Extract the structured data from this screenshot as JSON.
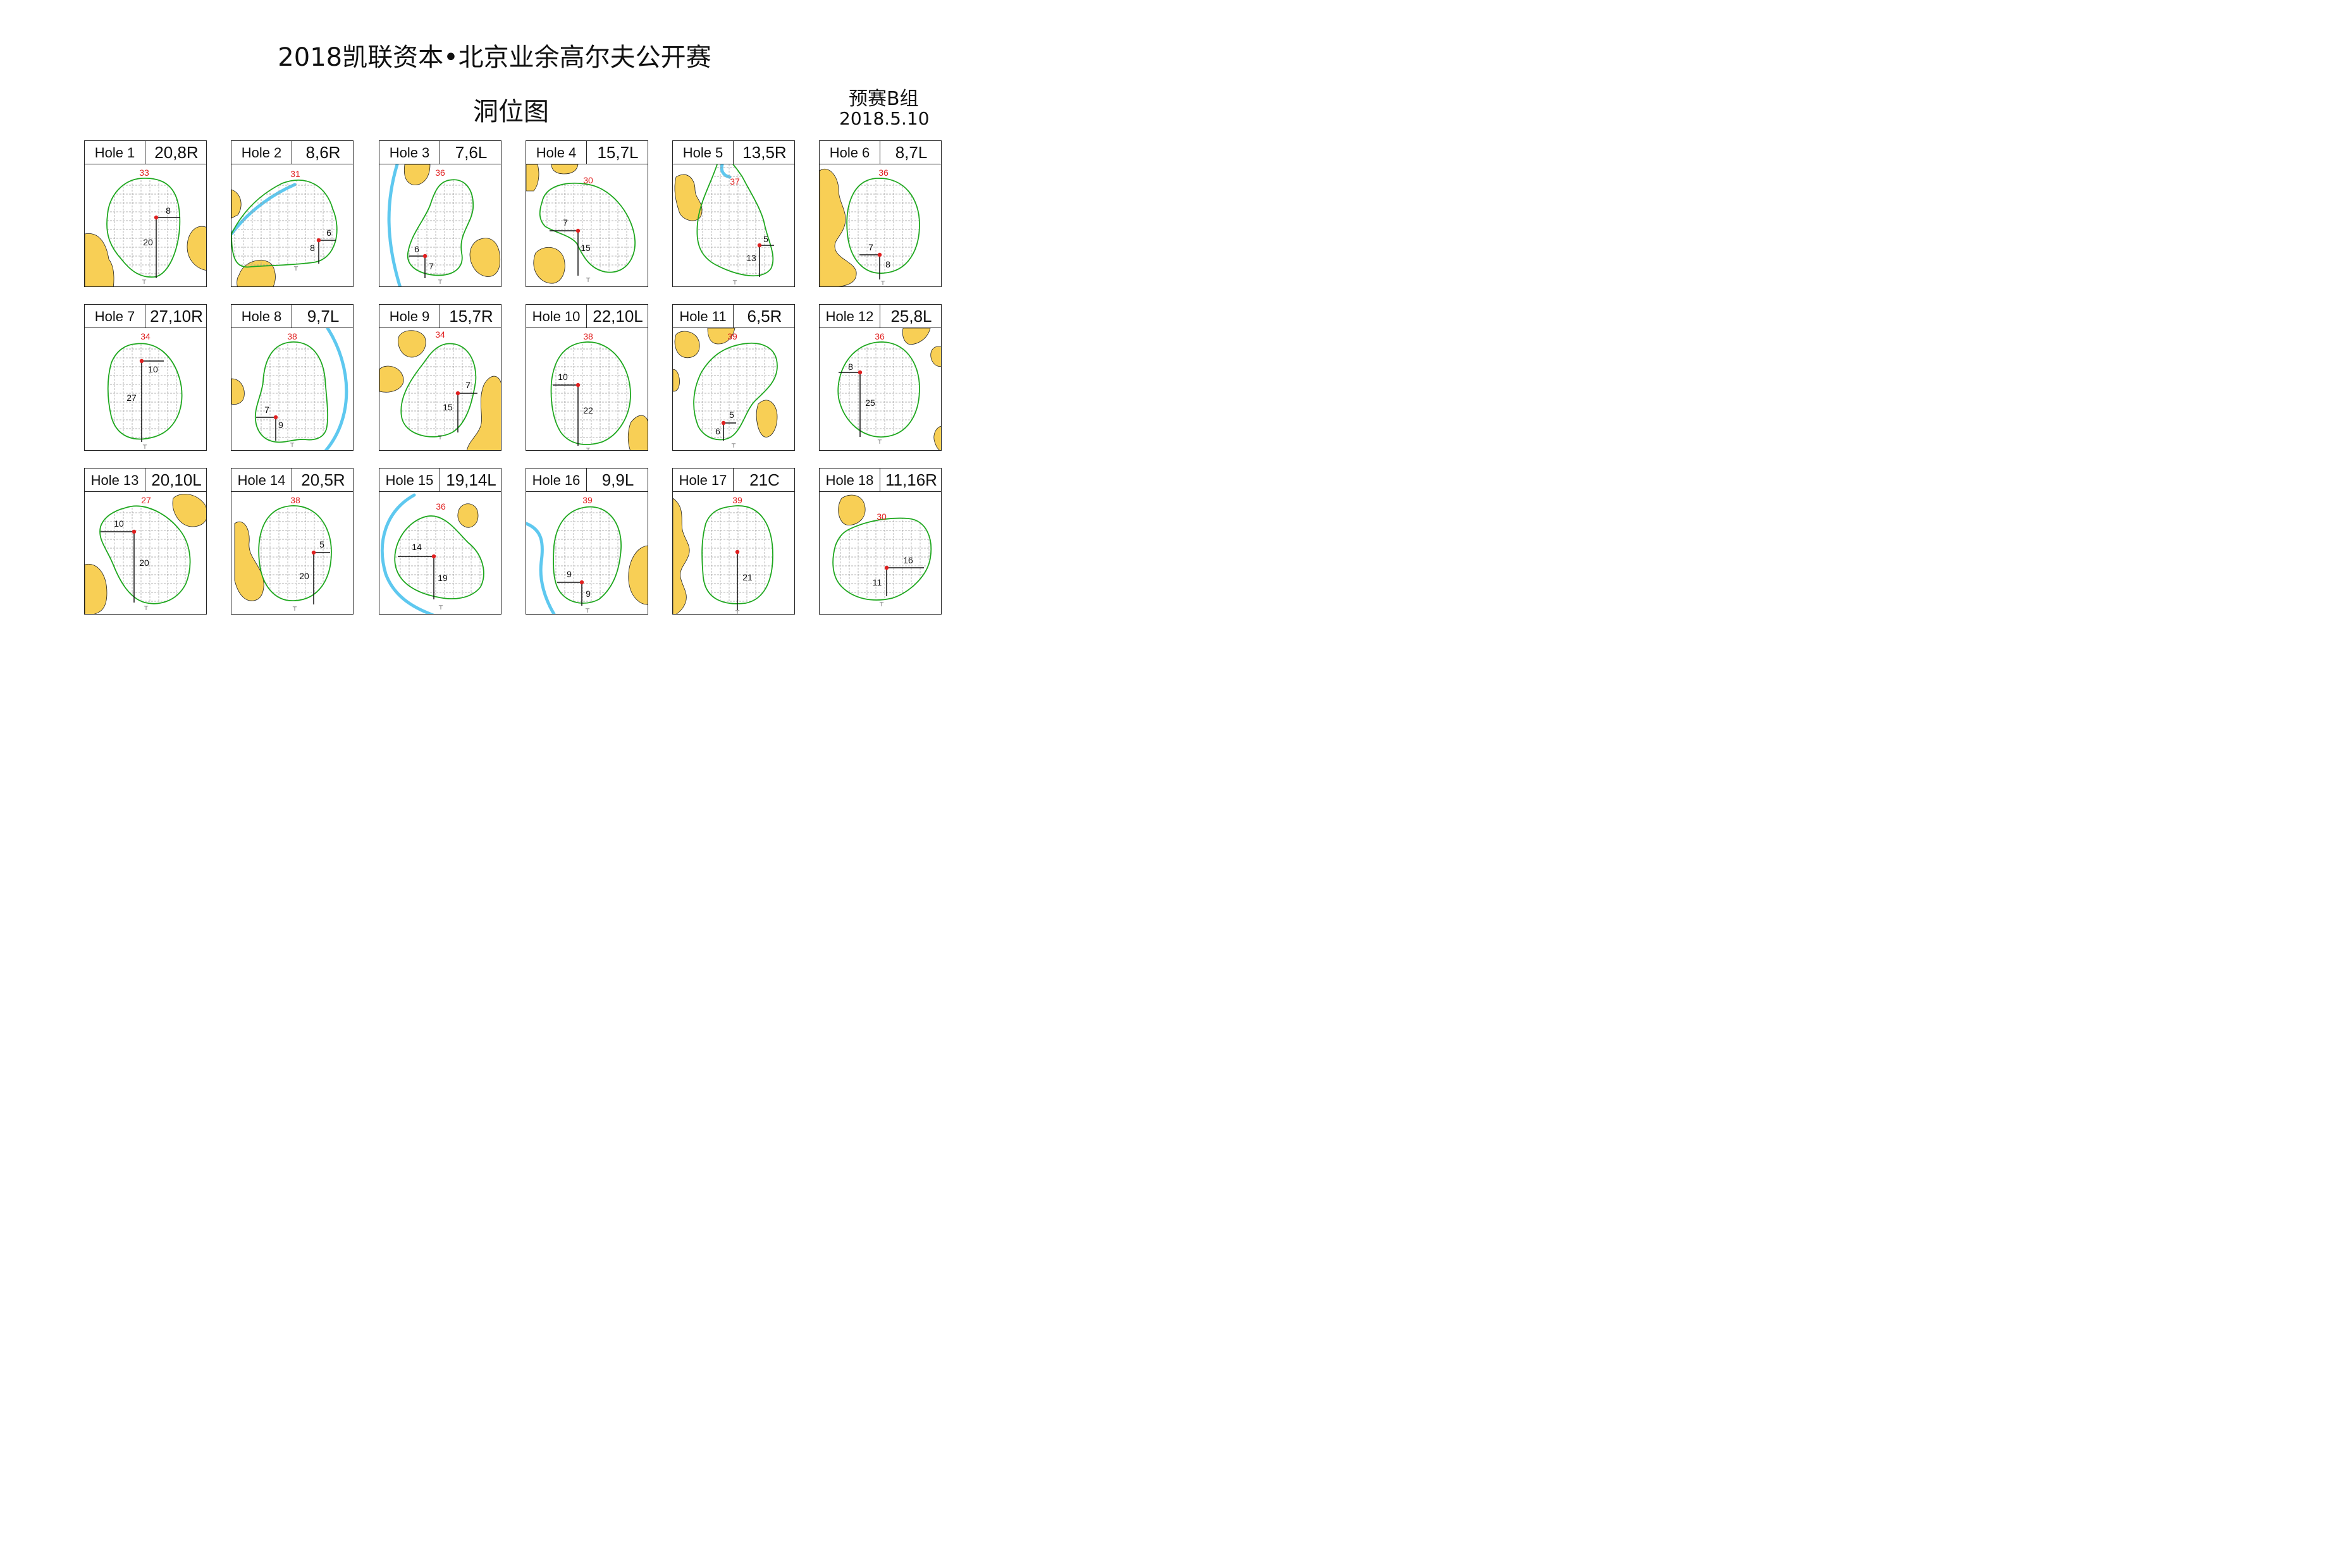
{
  "title": "2018凯联资本•北京业余高尔夫公开赛",
  "subtitle": "洞位图",
  "group": "预赛B组",
  "date": "2018.5.10",
  "colors": {
    "green_outline": "#1fa81f",
    "bunker": "#f8cf55",
    "water": "#5ec8ef",
    "pin": "#e02020",
    "depth_label": "#e02020"
  },
  "holes": [
    {
      "hole": "Hole 1",
      "position": "20,8R",
      "depth": "33",
      "from_front": "20",
      "from_side": "8"
    },
    {
      "hole": "Hole 2",
      "position": "8,6R",
      "depth": "31",
      "from_front": "8",
      "from_side": "6"
    },
    {
      "hole": "Hole 3",
      "position": "7,6L",
      "depth": "36",
      "from_front": "7",
      "from_side": "6"
    },
    {
      "hole": "Hole 4",
      "position": "15,7L",
      "depth": "30",
      "from_front": "15",
      "from_side": "7"
    },
    {
      "hole": "Hole 5",
      "position": "13,5R",
      "depth": "37",
      "from_front": "13",
      "from_side": "5"
    },
    {
      "hole": "Hole 6",
      "position": "8,7L",
      "depth": "36",
      "from_front": "8",
      "from_side": "7"
    },
    {
      "hole": "Hole 7",
      "position": "27,10R",
      "depth": "34",
      "from_front": "27",
      "from_side": "10"
    },
    {
      "hole": "Hole 8",
      "position": "9,7L",
      "depth": "38",
      "from_front": "9",
      "from_side": "7"
    },
    {
      "hole": "Hole 9",
      "position": "15,7R",
      "depth": "34",
      "from_front": "15",
      "from_side": "7"
    },
    {
      "hole": "Hole 10",
      "position": "22,10L",
      "depth": "38",
      "from_front": "22",
      "from_side": "10"
    },
    {
      "hole": "Hole 11",
      "position": "6,5R",
      "depth": "39",
      "from_front": "6",
      "from_side": "5"
    },
    {
      "hole": "Hole 12",
      "position": "25,8L",
      "depth": "36",
      "from_front": "25",
      "from_side": "8"
    },
    {
      "hole": "Hole 13",
      "position": "20,10L",
      "depth": "27",
      "from_front": "20",
      "from_side": "10"
    },
    {
      "hole": "Hole 14",
      "position": "20,5R",
      "depth": "38",
      "from_front": "20",
      "from_side": "5"
    },
    {
      "hole": "Hole 15",
      "position": "19,14L",
      "depth": "36",
      "from_front": "19",
      "from_side": "14"
    },
    {
      "hole": "Hole 16",
      "position": "9,9L",
      "depth": "39",
      "from_front": "9",
      "from_side": "9"
    },
    {
      "hole": "Hole 17",
      "position": "21C",
      "depth": "39",
      "from_front": "21",
      "from_side": ""
    },
    {
      "hole": "Hole 18",
      "position": "11,16R",
      "depth": "30",
      "from_front": "11",
      "from_side": "16"
    }
  ]
}
